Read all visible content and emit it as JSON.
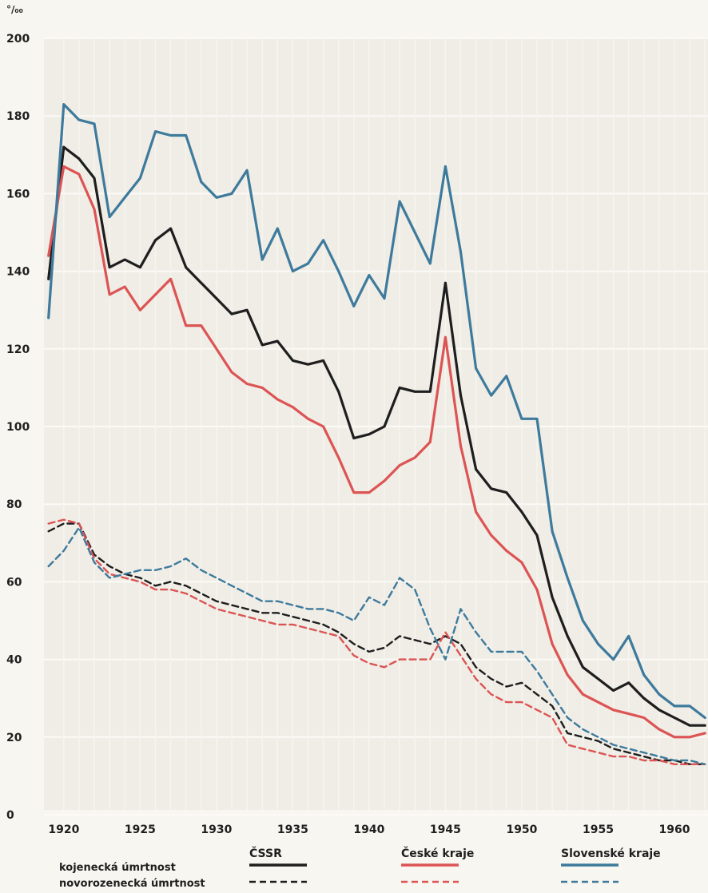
{
  "chart_data": {
    "type": "line",
    "y_unit_label": "°/₀₀",
    "ylim": [
      0,
      200
    ],
    "y_ticks": [
      "0",
      "20",
      "40",
      "60",
      "80",
      "100",
      "120",
      "140",
      "160",
      "180",
      "200"
    ],
    "xlim": [
      1918.7,
      1962.2
    ],
    "x_ticks": [
      "1920",
      "1925",
      "1930",
      "1935",
      "1940",
      "1945",
      "1950",
      "1955",
      "1960"
    ],
    "grid": true,
    "legend": {
      "columns": [
        "ČSSR",
        "České kraje",
        "Slovenské kraje"
      ],
      "rows": [
        "kojenecká úmrtnost",
        "novorozenecká úmrtnost"
      ]
    },
    "colors": {
      "cssr": "#1e1e1e",
      "ceske": "#dc5454",
      "slovenske": "#3e7a9c"
    },
    "series": [
      {
        "region": "ČSSR",
        "metric": "kojenecká úmrtnost",
        "style": "solid",
        "color": "#1e1e1e",
        "x": [
          1919,
          1920,
          1921,
          1922,
          1923,
          1924,
          1925,
          1926,
          1927,
          1928,
          1929,
          1930,
          1931,
          1932,
          1933,
          1934,
          1935,
          1936,
          1937,
          1938,
          1939,
          1940,
          1941,
          1942,
          1943,
          1944,
          1945,
          1946,
          1947,
          1948,
          1949,
          1950,
          1951,
          1952,
          1953,
          1954,
          1955,
          1956,
          1957,
          1958,
          1959,
          1960,
          1961,
          1962
        ],
        "y": [
          138,
          172,
          169,
          164,
          141,
          143,
          141,
          148,
          151,
          141,
          137,
          133,
          129,
          130,
          121,
          122,
          117,
          116,
          117,
          109,
          97,
          98,
          100,
          110,
          109,
          109,
          137,
          108,
          89,
          84,
          83,
          78,
          72,
          56,
          46,
          38,
          35,
          32,
          34,
          30,
          27,
          25,
          23,
          23
        ]
      },
      {
        "region": "České kraje",
        "metric": "kojenecká úmrtnost",
        "style": "solid",
        "color": "#dc5454",
        "x": [
          1919,
          1920,
          1921,
          1922,
          1923,
          1924,
          1925,
          1926,
          1927,
          1928,
          1929,
          1930,
          1931,
          1932,
          1933,
          1934,
          1935,
          1936,
          1937,
          1938,
          1939,
          1940,
          1941,
          1942,
          1943,
          1944,
          1945,
          1946,
          1947,
          1948,
          1949,
          1950,
          1951,
          1952,
          1953,
          1954,
          1955,
          1956,
          1957,
          1958,
          1959,
          1960,
          1961,
          1962
        ],
        "y": [
          144,
          167,
          165,
          156,
          134,
          136,
          130,
          134,
          138,
          126,
          126,
          120,
          114,
          111,
          110,
          107,
          105,
          102,
          100,
          92,
          83,
          83,
          86,
          90,
          92,
          96,
          123,
          95,
          78,
          72,
          68,
          65,
          58,
          44,
          36,
          31,
          29,
          27,
          26,
          25,
          22,
          20,
          20,
          21
        ]
      },
      {
        "region": "Slovenské kraje",
        "metric": "kojenecká úmrtnost",
        "style": "solid",
        "color": "#3e7a9c",
        "x": [
          1919,
          1920,
          1921,
          1922,
          1923,
          1924,
          1925,
          1926,
          1927,
          1928,
          1929,
          1930,
          1931,
          1932,
          1933,
          1934,
          1935,
          1936,
          1937,
          1938,
          1939,
          1940,
          1941,
          1942,
          1943,
          1944,
          1945,
          1946,
          1947,
          1948,
          1949,
          1950,
          1951,
          1952,
          1953,
          1954,
          1955,
          1956,
          1957,
          1958,
          1959,
          1960,
          1961,
          1962
        ],
        "y": [
          128,
          183,
          179,
          178,
          154,
          159,
          164,
          176,
          175,
          175,
          163,
          159,
          160,
          166,
          143,
          151,
          140,
          142,
          148,
          140,
          131,
          139,
          133,
          158,
          150,
          142,
          167,
          145,
          115,
          108,
          113,
          102,
          102,
          73,
          61,
          50,
          44,
          40,
          46,
          36,
          31,
          28,
          28,
          25
        ]
      },
      {
        "region": "ČSSR",
        "metric": "novorozenecká úmrtnost",
        "style": "dashed",
        "color": "#1e1e1e",
        "x": [
          1919,
          1920,
          1921,
          1922,
          1923,
          1924,
          1925,
          1926,
          1927,
          1928,
          1929,
          1930,
          1931,
          1932,
          1933,
          1934,
          1935,
          1936,
          1937,
          1938,
          1939,
          1940,
          1941,
          1942,
          1943,
          1944,
          1945,
          1946,
          1947,
          1948,
          1949,
          1950,
          1951,
          1952,
          1953,
          1954,
          1955,
          1956,
          1957,
          1958,
          1959,
          1960,
          1961,
          1962
        ],
        "y": [
          73,
          75,
          75,
          67,
          64,
          62,
          61,
          59,
          60,
          59,
          57,
          55,
          54,
          53,
          52,
          52,
          51,
          50,
          49,
          47,
          44,
          42,
          43,
          46,
          45,
          44,
          46,
          44,
          38,
          35,
          33,
          34,
          31,
          28,
          21,
          20,
          19,
          17,
          16,
          15,
          14,
          14,
          13,
          13
        ]
      },
      {
        "region": "České kraje",
        "metric": "novorozenecká úmrtnost",
        "style": "dashed",
        "color": "#dc5454",
        "x": [
          1919,
          1920,
          1921,
          1922,
          1923,
          1924,
          1925,
          1926,
          1927,
          1928,
          1929,
          1930,
          1931,
          1932,
          1933,
          1934,
          1935,
          1936,
          1937,
          1938,
          1939,
          1940,
          1941,
          1942,
          1943,
          1944,
          1945,
          1946,
          1947,
          1948,
          1949,
          1950,
          1951,
          1952,
          1953,
          1954,
          1955,
          1956,
          1957,
          1958,
          1959,
          1960,
          1961,
          1962
        ],
        "y": [
          75,
          76,
          75,
          66,
          62,
          61,
          60,
          58,
          58,
          57,
          55,
          53,
          52,
          51,
          50,
          49,
          49,
          48,
          47,
          46,
          41,
          39,
          38,
          40,
          40,
          40,
          47,
          41,
          35,
          31,
          29,
          29,
          27,
          25,
          18,
          17,
          16,
          15,
          15,
          14,
          14,
          13,
          13,
          13
        ]
      },
      {
        "region": "Slovenské kraje",
        "metric": "novorozenecká úmrtnost",
        "style": "dashed",
        "color": "#3e7a9c",
        "x": [
          1919,
          1920,
          1921,
          1922,
          1923,
          1924,
          1925,
          1926,
          1927,
          1928,
          1929,
          1930,
          1931,
          1932,
          1933,
          1934,
          1935,
          1936,
          1937,
          1938,
          1939,
          1940,
          1941,
          1942,
          1943,
          1944,
          1945,
          1946,
          1947,
          1948,
          1949,
          1950,
          1951,
          1952,
          1953,
          1954,
          1955,
          1956,
          1957,
          1958,
          1959,
          1960,
          1961,
          1962
        ],
        "y": [
          64,
          68,
          74,
          65,
          61,
          62,
          63,
          63,
          64,
          66,
          63,
          61,
          59,
          57,
          55,
          55,
          54,
          53,
          53,
          52,
          50,
          56,
          54,
          61,
          58,
          48,
          40,
          53,
          47,
          42,
          42,
          42,
          37,
          31,
          25,
          22,
          20,
          18,
          17,
          16,
          15,
          14,
          14,
          13
        ]
      }
    ]
  }
}
